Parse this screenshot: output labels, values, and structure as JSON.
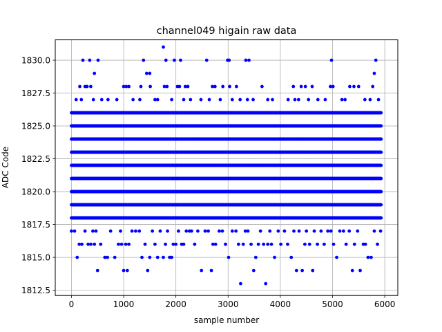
{
  "chart_data": {
    "type": "scatter",
    "title": "channel049 higain raw data",
    "xlabel": "sample number",
    "ylabel": "ADC Code",
    "xlim": [
      -310,
      6250
    ],
    "ylim": [
      1812.1,
      1831.55
    ],
    "xticks": [
      0,
      1000,
      2000,
      3000,
      4000,
      5000,
      6000
    ],
    "yticks": [
      1812.5,
      1815.0,
      1817.5,
      1820.0,
      1822.5,
      1825.0,
      1827.5,
      1830.0
    ],
    "xtick_labels": [
      "0",
      "1000",
      "2000",
      "3000",
      "4000",
      "5000",
      "6000"
    ],
    "ytick_labels": [
      "1812.5",
      "1815.0",
      "1817.5",
      "1820.0",
      "1822.5",
      "1825.0",
      "1827.5",
      "1830.0"
    ],
    "grid": true,
    "marker_color": "#0000ff",
    "n_samples": 5940,
    "dense_levels": [
      1818,
      1819,
      1820,
      1821,
      1822,
      1823,
      1824,
      1825,
      1826
    ],
    "series": [
      {
        "values": [
          [
            0,
            1817
          ],
          [
            60,
            1817
          ],
          [
            110,
            1815
          ],
          [
            150,
            1816
          ],
          [
            200,
            1816
          ],
          [
            260,
            1817
          ],
          [
            320,
            1816
          ],
          [
            370,
            1816
          ],
          [
            410,
            1817
          ],
          [
            440,
            1816
          ],
          [
            470,
            1817
          ],
          [
            500,
            1814
          ],
          [
            560,
            1816
          ],
          [
            640,
            1815
          ],
          [
            690,
            1815
          ],
          [
            750,
            1817
          ],
          [
            830,
            1815
          ],
          [
            900,
            1816
          ],
          [
            940,
            1817
          ],
          [
            960,
            1816
          ],
          [
            1000,
            1814
          ],
          [
            1040,
            1816
          ],
          [
            1070,
            1814
          ],
          [
            1100,
            1816
          ],
          [
            1160,
            1817
          ],
          [
            1230,
            1817
          ],
          [
            1300,
            1817
          ],
          [
            1350,
            1815
          ],
          [
            1410,
            1816
          ],
          [
            1460,
            1814
          ],
          [
            1500,
            1815
          ],
          [
            1550,
            1817
          ],
          [
            1600,
            1816
          ],
          [
            1650,
            1815
          ],
          [
            1700,
            1817
          ],
          [
            1760,
            1815
          ],
          [
            1800,
            1816
          ],
          [
            1840,
            1817
          ],
          [
            1880,
            1815
          ],
          [
            1920,
            1815
          ],
          [
            1950,
            1816
          ],
          [
            2000,
            1816
          ],
          [
            2050,
            1817
          ],
          [
            2110,
            1816
          ],
          [
            2150,
            1816
          ],
          [
            2200,
            1817
          ],
          [
            2260,
            1817
          ],
          [
            2300,
            1817
          ],
          [
            2360,
            1816
          ],
          [
            2420,
            1817
          ],
          [
            2490,
            1814
          ],
          [
            2560,
            1817
          ],
          [
            2620,
            1817
          ],
          [
            2680,
            1814
          ],
          [
            2710,
            1816
          ],
          [
            2760,
            1816
          ],
          [
            2830,
            1817
          ],
          [
            2890,
            1817
          ],
          [
            2950,
            1816
          ],
          [
            3010,
            1815
          ],
          [
            3080,
            1817
          ],
          [
            3150,
            1817
          ],
          [
            3200,
            1816
          ],
          [
            3240,
            1813
          ],
          [
            3290,
            1816
          ],
          [
            3330,
            1817
          ],
          [
            3380,
            1817
          ],
          [
            3440,
            1816
          ],
          [
            3490,
            1814
          ],
          [
            3530,
            1815
          ],
          [
            3580,
            1816
          ],
          [
            3620,
            1817
          ],
          [
            3680,
            1816
          ],
          [
            3720,
            1813
          ],
          [
            3760,
            1816
          ],
          [
            3800,
            1817
          ],
          [
            3830,
            1816
          ],
          [
            3890,
            1815
          ],
          [
            3960,
            1817
          ],
          [
            4010,
            1816
          ],
          [
            4080,
            1817
          ],
          [
            4140,
            1816
          ],
          [
            4210,
            1815
          ],
          [
            4260,
            1817
          ],
          [
            4310,
            1814
          ],
          [
            4360,
            1817
          ],
          [
            4420,
            1814
          ],
          [
            4470,
            1816
          ],
          [
            4500,
            1817
          ],
          [
            4560,
            1816
          ],
          [
            4620,
            1814
          ],
          [
            4650,
            1817
          ],
          [
            4710,
            1816
          ],
          [
            4780,
            1817
          ],
          [
            4840,
            1816
          ],
          [
            4910,
            1817
          ],
          [
            4970,
            1817
          ],
          [
            5020,
            1816
          ],
          [
            5080,
            1815
          ],
          [
            5140,
            1817
          ],
          [
            5210,
            1817
          ],
          [
            5260,
            1816
          ],
          [
            5320,
            1817
          ],
          [
            5380,
            1814
          ],
          [
            5420,
            1816
          ],
          [
            5480,
            1817
          ],
          [
            5530,
            1814
          ],
          [
            5590,
            1816
          ],
          [
            5630,
            1816
          ],
          [
            5680,
            1815
          ],
          [
            5740,
            1815
          ],
          [
            5800,
            1817
          ],
          [
            5860,
            1816
          ],
          [
            5920,
            1817
          ],
          [
            220,
            1830
          ],
          [
            350,
            1830
          ],
          [
            440,
            1829
          ],
          [
            510,
            1830
          ],
          [
            1380,
            1830
          ],
          [
            1440,
            1829
          ],
          [
            1500,
            1829
          ],
          [
            1760,
            1831
          ],
          [
            1810,
            1830
          ],
          [
            1970,
            1830
          ],
          [
            2090,
            1830
          ],
          [
            2590,
            1830
          ],
          [
            2990,
            1830
          ],
          [
            3020,
            1830
          ],
          [
            3340,
            1830
          ],
          [
            3400,
            1830
          ],
          [
            4980,
            1830
          ],
          [
            5800,
            1829
          ],
          [
            5830,
            1830
          ],
          [
            160,
            1828
          ],
          [
            260,
            1828
          ],
          [
            300,
            1828
          ],
          [
            370,
            1828
          ],
          [
            1000,
            1828
          ],
          [
            1050,
            1828
          ],
          [
            1100,
            1828
          ],
          [
            1330,
            1828
          ],
          [
            1510,
            1828
          ],
          [
            1780,
            1828
          ],
          [
            1830,
            1828
          ],
          [
            2030,
            1828
          ],
          [
            2070,
            1828
          ],
          [
            2180,
            1828
          ],
          [
            2230,
            1828
          ],
          [
            2700,
            1828
          ],
          [
            2750,
            1828
          ],
          [
            2900,
            1828
          ],
          [
            3030,
            1828
          ],
          [
            3160,
            1828
          ],
          [
            3650,
            1828
          ],
          [
            4250,
            1828
          ],
          [
            4400,
            1828
          ],
          [
            4480,
            1828
          ],
          [
            4610,
            1828
          ],
          [
            4960,
            1828
          ],
          [
            5010,
            1828
          ],
          [
            5330,
            1828
          ],
          [
            5410,
            1828
          ],
          [
            5500,
            1828
          ],
          [
            5770,
            1828
          ],
          [
            90,
            1827
          ],
          [
            190,
            1827
          ],
          [
            420,
            1827
          ],
          [
            580,
            1827
          ],
          [
            700,
            1827
          ],
          [
            870,
            1827
          ],
          [
            1180,
            1827
          ],
          [
            1310,
            1827
          ],
          [
            1600,
            1827
          ],
          [
            1650,
            1827
          ],
          [
            1920,
            1827
          ],
          [
            2150,
            1827
          ],
          [
            2280,
            1827
          ],
          [
            2480,
            1827
          ],
          [
            2640,
            1827
          ],
          [
            2850,
            1827
          ],
          [
            3080,
            1827
          ],
          [
            3230,
            1827
          ],
          [
            3370,
            1827
          ],
          [
            3480,
            1827
          ],
          [
            3760,
            1827
          ],
          [
            3850,
            1827
          ],
          [
            4150,
            1827
          ],
          [
            4280,
            1827
          ],
          [
            4350,
            1827
          ],
          [
            4540,
            1827
          ],
          [
            4720,
            1827
          ],
          [
            4860,
            1827
          ],
          [
            5180,
            1827
          ],
          [
            5240,
            1827
          ],
          [
            5620,
            1827
          ],
          [
            5720,
            1827
          ],
          [
            5880,
            1827
          ]
        ]
      }
    ]
  }
}
